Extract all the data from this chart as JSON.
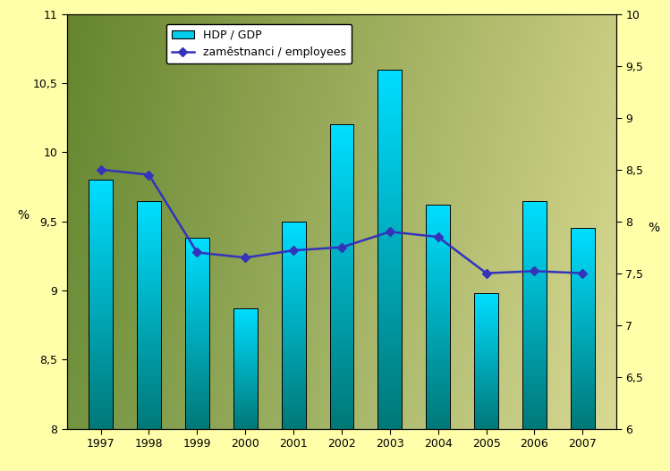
{
  "years": [
    1997,
    1998,
    1999,
    2000,
    2001,
    2002,
    2003,
    2004,
    2005,
    2006,
    2007
  ],
  "gdp_values": [
    9.8,
    9.65,
    9.38,
    8.87,
    9.5,
    10.2,
    10.6,
    9.62,
    8.98,
    9.65,
    9.45
  ],
  "emp_values": [
    8.5,
    8.45,
    7.7,
    7.65,
    7.72,
    7.75,
    7.9,
    7.85,
    7.5,
    7.52,
    7.5
  ],
  "left_ylim": [
    8,
    11
  ],
  "right_ylim": [
    6,
    10
  ],
  "left_yticks": [
    8,
    8.5,
    9,
    9.5,
    10,
    10.5,
    11
  ],
  "right_yticks": [
    6,
    6.5,
    7,
    7.5,
    8,
    8.5,
    9,
    9.5,
    10
  ],
  "legend_bar_label": "HDP / GDP",
  "legend_line_label": "zaměstnanci / employees",
  "ylabel_left": "%",
  "ylabel_right": "%",
  "background_outer": "#FFFFAA",
  "bar_color_top": "#00DDFF",
  "bar_color_bottom": "#007878",
  "line_color": "#3333BB",
  "marker_color": "#3333BB",
  "bar_width": 0.5
}
